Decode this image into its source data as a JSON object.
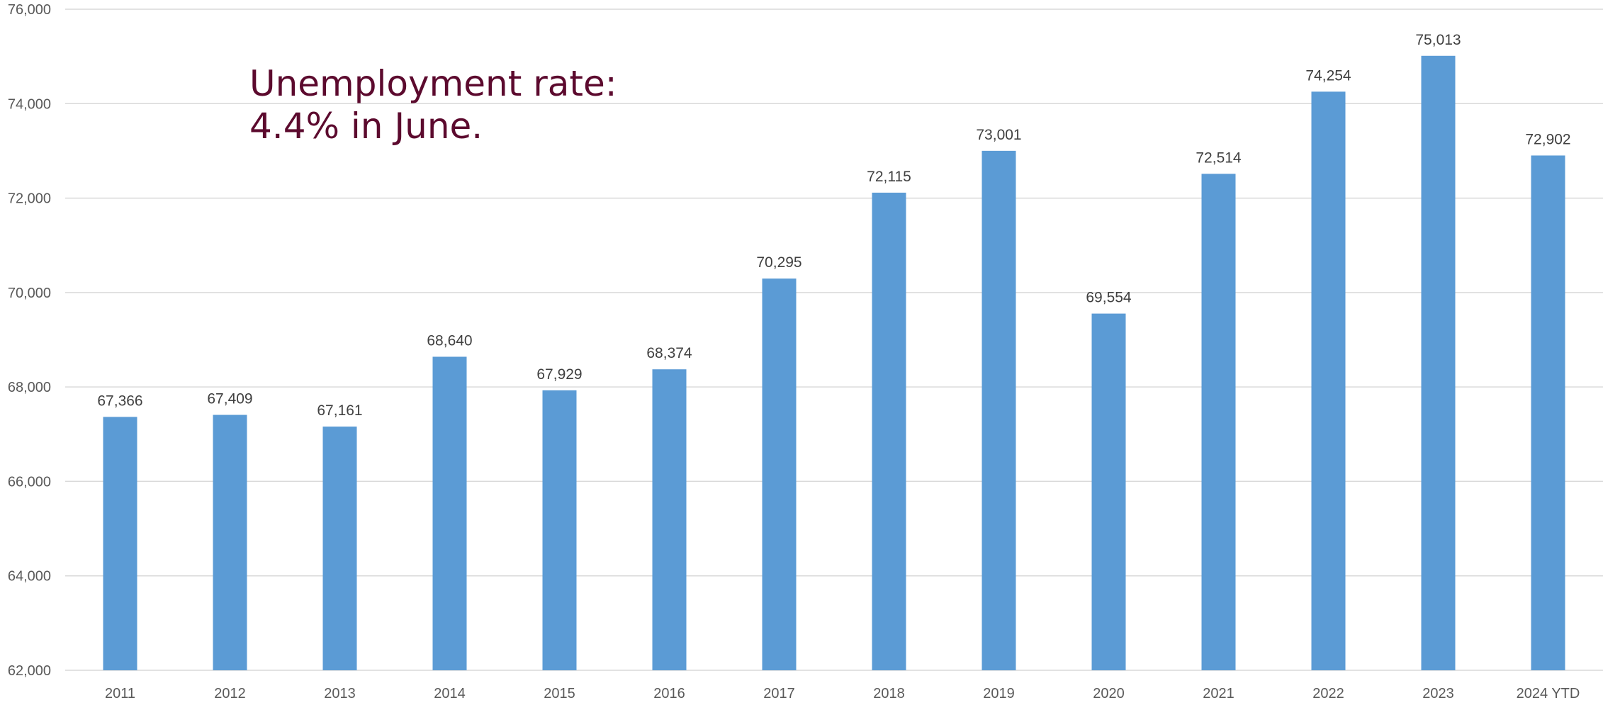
{
  "annotation": {
    "line1": "Unemployment rate:",
    "line2": "4.4% in June."
  },
  "colors": {
    "bar": "#5b9bd5",
    "gridline": "#d9d9d9",
    "axis_text": "#595959",
    "data_label": "#404040",
    "annotation": "#5c0a2e"
  },
  "chart_data": {
    "type": "bar",
    "categories": [
      "2011",
      "2012",
      "2013",
      "2014",
      "2015",
      "2016",
      "2017",
      "2018",
      "2019",
      "2020",
      "2021",
      "2022",
      "2023",
      "2024 YTD"
    ],
    "values": [
      67366,
      67409,
      67161,
      68640,
      67929,
      68374,
      70295,
      72115,
      73001,
      69554,
      72514,
      74254,
      75013,
      72902
    ],
    "value_labels": [
      "67,366",
      "67,409",
      "67,161",
      "68,640",
      "67,929",
      "68,374",
      "70,295",
      "72,115",
      "73,001",
      "69,554",
      "72,514",
      "74,254",
      "75,013",
      "72,902"
    ],
    "ylim": [
      62000,
      76000
    ],
    "yticks": [
      62000,
      64000,
      66000,
      68000,
      70000,
      72000,
      74000,
      76000
    ],
    "ytick_labels": [
      "62,000",
      "64,000",
      "66,000",
      "68,000",
      "70,000",
      "72,000",
      "74,000",
      "76,000"
    ],
    "grid": true,
    "legend": "none",
    "data_labels": true,
    "title": "",
    "xlabel": "",
    "ylabel": ""
  }
}
